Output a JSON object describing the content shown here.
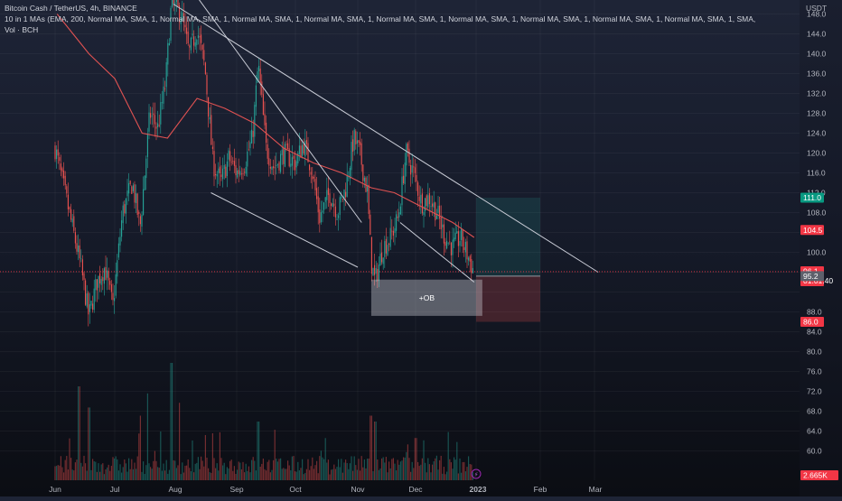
{
  "header": {
    "title": "Bitcoin Cash / TetherUS, 4h, BINANCE",
    "indicator": "10 in 1 MAs (EMA, 200, Normal MA, SMA, 1, Normal MA, SMA, 1, Normal MA, SMA, 1, Normal MA, SMA, 1, Normal MA, SMA, 1, Normal MA, SMA, 1, Normal MA, SMA, 1, Normal MA, SMA, 1, Normal MA, SMA, 1, SMA,",
    "volume": "Vol · BCH"
  },
  "colors": {
    "background_top": "#1e2436",
    "background_bottom": "#0b0d13",
    "up_candle": "#26a69a",
    "down_candle": "#ef5350",
    "ma_line": "#e05252",
    "trendline": "#c9ccd6",
    "long_profit_zone": "#26a69a",
    "long_stop_zone": "#ef5350",
    "ob_box": "#d1d4dc",
    "badge_target": "#089981",
    "badge_price": "#f23645",
    "badge_level": "#5d606b"
  },
  "chart_data": {
    "type": "candlestick",
    "symbol": "Bitcoin Cash / TetherUS",
    "interval": "4h",
    "exchange": "BINANCE",
    "currency": "USDT",
    "y_scale": "linear",
    "ylim": [
      59,
      149
    ],
    "y_ticks": [
      148.0,
      144.0,
      140.0,
      136.0,
      132.0,
      128.0,
      124.0,
      120.0,
      116.0,
      112.0,
      108.0,
      100.0,
      88.0,
      84.0,
      80.0,
      76.0,
      72.0,
      68.0,
      64.0,
      60.0
    ],
    "x_tick_labels": [
      "Jun",
      "Jul",
      "Aug",
      "Sep",
      "Oct",
      "Nov",
      "Dec",
      "2023",
      "Feb",
      "Mar"
    ],
    "grid": true,
    "legend": "none",
    "price_path": [
      {
        "month": "Jun",
        "day": 1,
        "price": 121
      },
      {
        "month": "Jun",
        "day": 7,
        "price": 110
      },
      {
        "month": "Jun",
        "day": 14,
        "price": 97
      },
      {
        "month": "Jun",
        "day": 18,
        "price": 87
      },
      {
        "month": "Jun",
        "day": 22,
        "price": 94
      },
      {
        "month": "Jun",
        "day": 26,
        "price": 97
      },
      {
        "month": "Jun",
        "day": 30,
        "price": 89
      },
      {
        "month": "Jul",
        "day": 5,
        "price": 108
      },
      {
        "month": "Jul",
        "day": 10,
        "price": 114
      },
      {
        "month": "Jul",
        "day": 14,
        "price": 105
      },
      {
        "month": "Jul",
        "day": 19,
        "price": 128
      },
      {
        "month": "Jul",
        "day": 23,
        "price": 125
      },
      {
        "month": "Jul",
        "day": 27,
        "price": 134
      },
      {
        "month": "Jul",
        "day": 30,
        "price": 150
      },
      {
        "month": "Aug",
        "day": 4,
        "price": 148
      },
      {
        "month": "Aug",
        "day": 8,
        "price": 140
      },
      {
        "month": "Aug",
        "day": 12,
        "price": 145
      },
      {
        "month": "Aug",
        "day": 16,
        "price": 137
      },
      {
        "month": "Aug",
        "day": 20,
        "price": 118
      },
      {
        "month": "Aug",
        "day": 24,
        "price": 114
      },
      {
        "month": "Aug",
        "day": 28,
        "price": 119
      },
      {
        "month": "Sep",
        "day": 1,
        "price": 116
      },
      {
        "month": "Sep",
        "day": 5,
        "price": 118
      },
      {
        "month": "Sep",
        "day": 9,
        "price": 123
      },
      {
        "month": "Sep",
        "day": 12,
        "price": 138
      },
      {
        "month": "Sep",
        "day": 16,
        "price": 121
      },
      {
        "month": "Sep",
        "day": 20,
        "price": 117
      },
      {
        "month": "Sep",
        "day": 25,
        "price": 120
      },
      {
        "month": "Oct",
        "day": 1,
        "price": 118
      },
      {
        "month": "Oct",
        "day": 5,
        "price": 122
      },
      {
        "month": "Oct",
        "day": 9,
        "price": 117
      },
      {
        "month": "Oct",
        "day": 13,
        "price": 107
      },
      {
        "month": "Oct",
        "day": 18,
        "price": 112
      },
      {
        "month": "Oct",
        "day": 22,
        "price": 108
      },
      {
        "month": "Oct",
        "day": 26,
        "price": 113
      },
      {
        "month": "Oct",
        "day": 30,
        "price": 123
      },
      {
        "month": "Nov",
        "day": 2,
        "price": 120
      },
      {
        "month": "Nov",
        "day": 6,
        "price": 112
      },
      {
        "month": "Nov",
        "day": 8,
        "price": 98
      },
      {
        "month": "Nov",
        "day": 10,
        "price": 94
      },
      {
        "month": "Nov",
        "day": 14,
        "price": 101
      },
      {
        "month": "Nov",
        "day": 18,
        "price": 103
      },
      {
        "month": "Nov",
        "day": 22,
        "price": 107
      },
      {
        "month": "Nov",
        "day": 26,
        "price": 120
      },
      {
        "month": "Nov",
        "day": 30,
        "price": 116
      },
      {
        "month": "Dec",
        "day": 4,
        "price": 110
      },
      {
        "month": "Dec",
        "day": 8,
        "price": 111
      },
      {
        "month": "Dec",
        "day": 12,
        "price": 108
      },
      {
        "month": "Dec",
        "day": 16,
        "price": 103
      },
      {
        "month": "Dec",
        "day": 20,
        "price": 101
      },
      {
        "month": "Dec",
        "day": 24,
        "price": 103
      },
      {
        "month": "Dec",
        "day": 28,
        "price": 99
      },
      {
        "month": "Dec",
        "day": 31,
        "price": 96
      }
    ],
    "moving_average": {
      "type": "EMA",
      "length": 200,
      "path": [
        {
          "month": "Jun",
          "day": 2,
          "price": 148
        },
        {
          "month": "Jun",
          "day": 18,
          "price": 140
        },
        {
          "month": "Jul",
          "day": 1,
          "price": 135
        },
        {
          "month": "Jul",
          "day": 15,
          "price": 124
        },
        {
          "month": "Jul",
          "day": 28,
          "price": 123
        },
        {
          "month": "Aug",
          "day": 12,
          "price": 131
        },
        {
          "month": "Aug",
          "day": 26,
          "price": 129
        },
        {
          "month": "Sep",
          "day": 10,
          "price": 126
        },
        {
          "month": "Sep",
          "day": 25,
          "price": 121
        },
        {
          "month": "Oct",
          "day": 10,
          "price": 118
        },
        {
          "month": "Oct",
          "day": 24,
          "price": 116
        },
        {
          "month": "Nov",
          "day": 8,
          "price": 113
        },
        {
          "month": "Nov",
          "day": 20,
          "price": 112
        },
        {
          "month": "Dec",
          "day": 5,
          "price": 109
        },
        {
          "month": "Dec",
          "day": 20,
          "price": 106
        },
        {
          "month": "Dec",
          "day": 31,
          "price": 103
        }
      ]
    },
    "trendlines": [
      {
        "from": {
          "month": "Jul",
          "day": 31,
          "price": 158
        },
        "to": {
          "month": "Nov",
          "day": 3,
          "price": 106
        }
      },
      {
        "from": {
          "month": "Jul",
          "day": 31,
          "price": 150
        },
        "to": {
          "month": "Mar",
          "day": 3,
          "price": 96
        }
      },
      {
        "from": {
          "month": "Aug",
          "day": 19,
          "price": 112
        },
        "to": {
          "month": "Nov",
          "day": 1,
          "price": 97
        }
      },
      {
        "from": {
          "month": "Nov",
          "day": 23,
          "price": 106
        },
        "to": {
          "month": "Dec",
          "day": 31,
          "price": 94
        }
      }
    ],
    "annotations": [
      {
        "label": "+OB",
        "type": "order_block",
        "from": {
          "month": "Nov",
          "day": 8,
          "price": 94.5
        },
        "to": {
          "month": "Jan",
          "day": 4,
          "price": 87.2
        }
      }
    ],
    "position": {
      "type": "long",
      "entry": 95.2,
      "target": 111.0,
      "stop": 86.0,
      "from": {
        "month": "Jan",
        "day": 1
      },
      "to": {
        "month": "Feb",
        "day": 1
      }
    },
    "price_labels": [
      {
        "value": 111.0,
        "text": "111.0",
        "role": "target"
      },
      {
        "value": 104.5,
        "text": "104.5",
        "role": "ma"
      },
      {
        "value": 96.1,
        "text": "96.1",
        "countdown": "01:01:40",
        "role": "last"
      },
      {
        "value": 95.2,
        "text": "95.2",
        "role": "entry"
      },
      {
        "value": 86.0,
        "text": "86.0",
        "role": "stop"
      }
    ],
    "volume": {
      "label": "Vol · BCH",
      "last": "2.665K",
      "spikes": [
        {
          "month": "Jun",
          "day": 13,
          "level": 0.8
        },
        {
          "month": "Jun",
          "day": 18,
          "level": 0.62
        },
        {
          "month": "Jul",
          "day": 14,
          "level": 0.55
        },
        {
          "month": "Jul",
          "day": 18,
          "level": 0.74
        },
        {
          "month": "Jul",
          "day": 30,
          "level": 1.0
        },
        {
          "month": "Aug",
          "day": 3,
          "level": 0.66
        },
        {
          "month": "Aug",
          "day": 20,
          "level": 0.4
        },
        {
          "month": "Sep",
          "day": 12,
          "level": 0.5
        },
        {
          "month": "Nov",
          "day": 8,
          "level": 0.55
        },
        {
          "month": "Nov",
          "day": 10,
          "level": 0.5
        },
        {
          "month": "Dec",
          "day": 1,
          "level": 0.36
        },
        {
          "month": "Dec",
          "day": 5,
          "level": 0.34
        }
      ]
    }
  }
}
